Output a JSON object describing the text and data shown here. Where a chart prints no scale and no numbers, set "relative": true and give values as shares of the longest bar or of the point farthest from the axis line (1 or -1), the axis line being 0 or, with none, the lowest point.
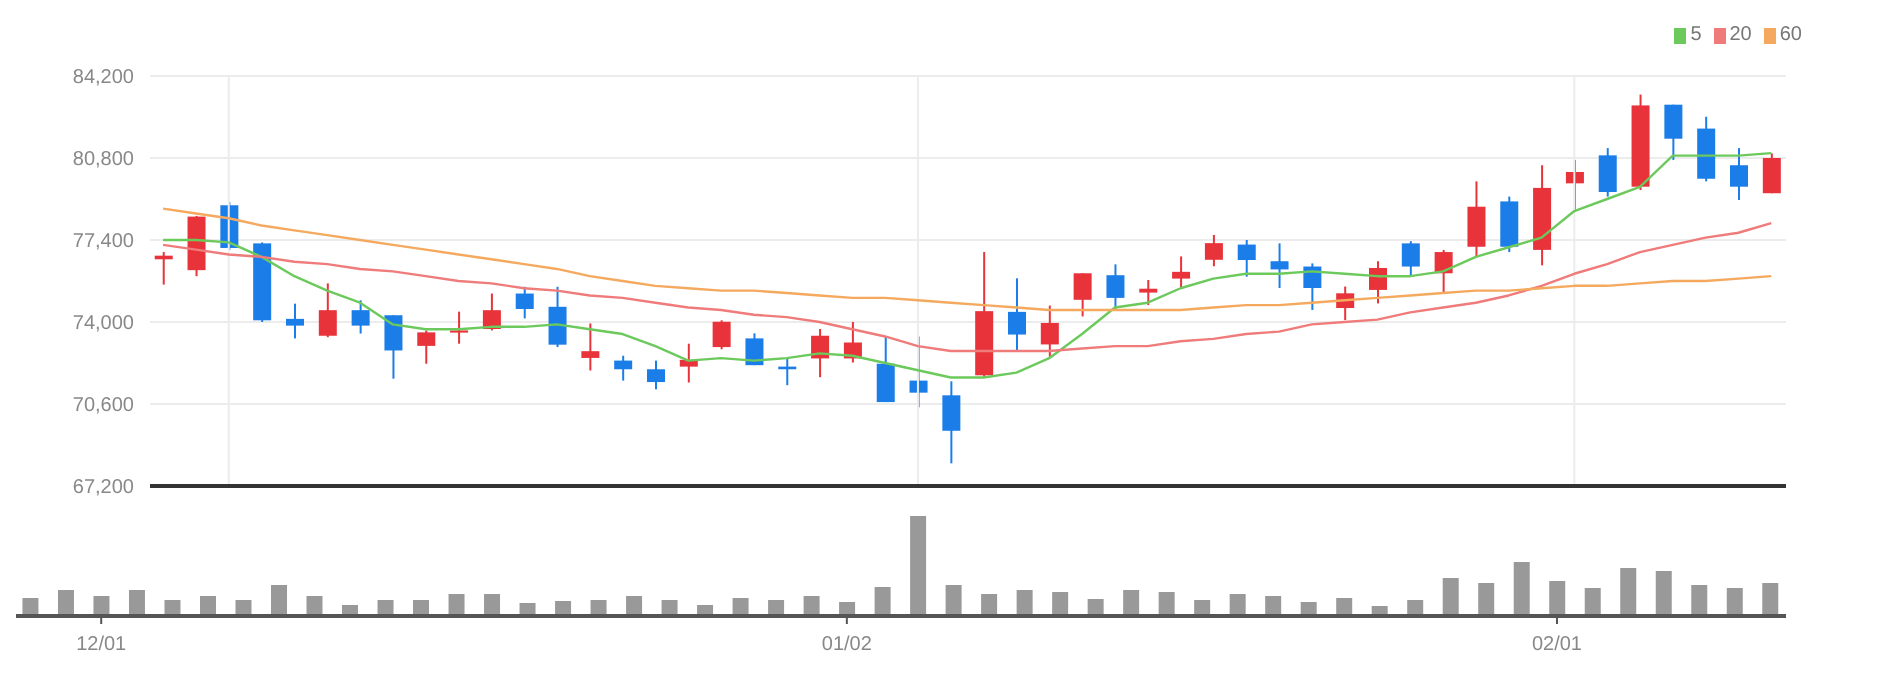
{
  "chart_data": [
    {
      "type": "candlestick",
      "categories": [
        null,
        null,
        null,
        null,
        null,
        null,
        null,
        null,
        null,
        null,
        null,
        null,
        null,
        null,
        null,
        null,
        null,
        null,
        null,
        null,
        null,
        null,
        null,
        null,
        null,
        null,
        null,
        null,
        null,
        null,
        null,
        null,
        null,
        null,
        null,
        null,
        null,
        null,
        null,
        null,
        null,
        null,
        null,
        null,
        null,
        null,
        null,
        null,
        null,
        null
      ],
      "ohlc": [
        [
          76600,
          76900,
          75550,
          76750
        ],
        [
          76150,
          78400,
          75900,
          78370
        ],
        [
          78840,
          78980,
          76990,
          77070
        ],
        [
          77260,
          77300,
          74000,
          74070
        ],
        [
          74130,
          74760,
          73320,
          73850
        ],
        [
          73430,
          75600,
          73370,
          74490
        ],
        [
          74490,
          74900,
          73520,
          73850
        ],
        [
          74280,
          74280,
          71650,
          72820
        ],
        [
          73010,
          73650,
          72270,
          73570
        ],
        [
          73560,
          74430,
          73100,
          73650
        ],
        [
          73710,
          75180,
          73650,
          74490
        ],
        [
          75180,
          75460,
          74150,
          74540
        ],
        [
          74630,
          75460,
          72960,
          73060
        ],
        [
          72510,
          73940,
          71990,
          72790
        ],
        [
          72400,
          72600,
          71570,
          72040
        ],
        [
          72040,
          72400,
          71210,
          71510
        ],
        [
          72150,
          73100,
          71490,
          72430
        ],
        [
          72960,
          74070,
          72870,
          74010
        ],
        [
          73320,
          73530,
          72210,
          72210
        ],
        [
          72150,
          72490,
          71380,
          72040
        ],
        [
          72490,
          73710,
          71710,
          73430
        ],
        [
          72490,
          74000,
          72320,
          73150
        ],
        [
          72270,
          73400,
          70680,
          70680
        ],
        [
          71570,
          73400,
          70460,
          71070
        ],
        [
          70960,
          71540,
          68140,
          69490
        ],
        [
          71790,
          76900,
          71680,
          74450
        ],
        [
          74420,
          75810,
          72770,
          73480
        ],
        [
          73070,
          74680,
          72560,
          73960
        ],
        [
          74920,
          76020,
          74230,
          76020
        ],
        [
          75940,
          76390,
          74510,
          75000
        ],
        [
          75220,
          75740,
          74700,
          75380
        ],
        [
          75800,
          76720,
          75380,
          76080
        ],
        [
          76580,
          77610,
          76310,
          77270
        ],
        [
          77210,
          77400,
          75880,
          76570
        ],
        [
          76520,
          77260,
          75410,
          76180
        ],
        [
          76300,
          76430,
          74500,
          75410
        ],
        [
          74580,
          75470,
          74080,
          75190
        ],
        [
          75330,
          76520,
          74770,
          76240
        ],
        [
          77260,
          77350,
          75880,
          76300
        ],
        [
          76020,
          76990,
          75240,
          76900
        ],
        [
          77120,
          79830,
          76710,
          78780
        ],
        [
          79000,
          79200,
          76900,
          77120
        ],
        [
          76990,
          80500,
          76350,
          79560
        ],
        [
          79750,
          80720,
          78640,
          80220
        ],
        [
          80910,
          81210,
          79200,
          79390
        ],
        [
          79610,
          83430,
          79470,
          82980
        ],
        [
          83010,
          83010,
          80720,
          81600
        ],
        [
          82020,
          82510,
          79830,
          79940
        ],
        [
          80500,
          81210,
          79060,
          79610
        ],
        [
          79340,
          80990,
          79340,
          80800
        ]
      ],
      "colors": [
        "#e8333a",
        "#e8333a",
        "#1a7de8",
        "#1a7de8",
        "#1a7de8",
        "#e8333a",
        "#1a7de8",
        "#1a7de8",
        "#e8333a",
        "#e8333a",
        "#e8333a",
        "#1a7de8",
        "#1a7de8",
        "#e8333a",
        "#1a7de8",
        "#1a7de8",
        "#e8333a",
        "#e8333a",
        "#1a7de8",
        "#1a7de8",
        "#e8333a",
        "#e8333a",
        "#1a7de8",
        "#1a7de8",
        "#1a7de8",
        "#e8333a",
        "#1a7de8",
        "#e8333a",
        "#e8333a",
        "#1a7de8",
        "#e8333a",
        "#e8333a",
        "#e8333a",
        "#1a7de8",
        "#1a7de8",
        "#1a7de8",
        "#e8333a",
        "#e8333a",
        "#1a7de8",
        "#e8333a",
        "#e8333a",
        "#1a7de8",
        "#e8333a",
        "#e8333a",
        "#1a7de8",
        "#e8333a",
        "#1a7de8",
        "#1a7de8",
        "#1a7de8",
        "#e8333a"
      ],
      "series": [
        {
          "type": "line",
          "name": "5",
          "color": "#6cc95c",
          "values": [
            77400,
            77400,
            77300,
            76700,
            75900,
            75300,
            74800,
            73900,
            73700,
            73700,
            73800,
            73800,
            73900,
            73700,
            73500,
            73000,
            72400,
            72500,
            72400,
            72500,
            72700,
            72600,
            72300,
            72000,
            71700,
            71700,
            71900,
            72500,
            73500,
            74600,
            74800,
            75400,
            75800,
            76000,
            76000,
            76100,
            76000,
            75900,
            75900,
            76100,
            76700,
            77100,
            77500,
            78600,
            79100,
            79600,
            80900,
            80900,
            80900,
            81000
          ]
        },
        {
          "type": "line",
          "name": "20",
          "color": "#ef7b7b",
          "values": [
            77200,
            77000,
            76800,
            76700,
            76500,
            76400,
            76200,
            76100,
            75900,
            75700,
            75600,
            75400,
            75300,
            75100,
            75000,
            74800,
            74600,
            74500,
            74300,
            74200,
            74000,
            73700,
            73400,
            73000,
            72800,
            72800,
            72800,
            72800,
            72900,
            73000,
            73000,
            73200,
            73300,
            73500,
            73600,
            73900,
            74000,
            74100,
            74400,
            74600,
            74800,
            75100,
            75500,
            76000,
            76400,
            76900,
            77200,
            77500,
            77700,
            78100
          ]
        },
        {
          "type": "line",
          "name": "60",
          "color": "#f4a95e",
          "values": [
            78700,
            78500,
            78300,
            78000,
            77800,
            77600,
            77400,
            77200,
            77000,
            76800,
            76600,
            76400,
            76200,
            75900,
            75700,
            75500,
            75400,
            75300,
            75300,
            75200,
            75100,
            75000,
            75000,
            74900,
            74800,
            74700,
            74600,
            74500,
            74500,
            74500,
            74500,
            74500,
            74600,
            74700,
            74700,
            74800,
            74900,
            75000,
            75100,
            75200,
            75300,
            75300,
            75400,
            75500,
            75500,
            75600,
            75700,
            75700,
            75800,
            75900
          ]
        }
      ],
      "ylim": [
        67200,
        84200
      ],
      "yticks": [
        {
          "value": 67200,
          "label": "67,200"
        },
        {
          "value": 70600,
          "label": "70,600"
        },
        {
          "value": 74000,
          "label": "74,000"
        },
        {
          "value": 77400,
          "label": "77,400"
        },
        {
          "value": 80800,
          "label": "80,800"
        },
        {
          "value": 84200,
          "label": "84,200"
        }
      ],
      "grid": true,
      "legend": "top right",
      "tick_labels": "y"
    },
    {
      "type": "bar",
      "categories": [
        null,
        null,
        "12/01",
        null,
        null,
        null,
        null,
        null,
        null,
        null,
        null,
        null,
        null,
        null,
        null,
        null,
        null,
        null,
        null,
        null,
        null,
        null,
        null,
        "01/02",
        null,
        null,
        null,
        null,
        null,
        null,
        null,
        null,
        null,
        null,
        null,
        null,
        null,
        null,
        null,
        null,
        null,
        null,
        null,
        "02/01",
        null,
        null,
        null,
        null,
        null,
        null
      ],
      "values": [
        0.18,
        0.26,
        0.2,
        0.26,
        0.16,
        0.2,
        0.16,
        0.31,
        0.2,
        0.11,
        0.16,
        0.16,
        0.22,
        0.22,
        0.13,
        0.15,
        0.16,
        0.2,
        0.16,
        0.11,
        0.18,
        0.16,
        0.2,
        0.14,
        0.29,
        1,
        0.31,
        0.22,
        0.26,
        0.24,
        0.17,
        0.26,
        0.24,
        0.16,
        0.22,
        0.2,
        0.14,
        0.18,
        0.1,
        0.16,
        0.38,
        0.33,
        0.54,
        0.35,
        0.28,
        0.48,
        0.45,
        0.31,
        0.28,
        0.33
      ],
      "color": "#999999",
      "relative": true,
      "tick_labels": "x"
    }
  ]
}
